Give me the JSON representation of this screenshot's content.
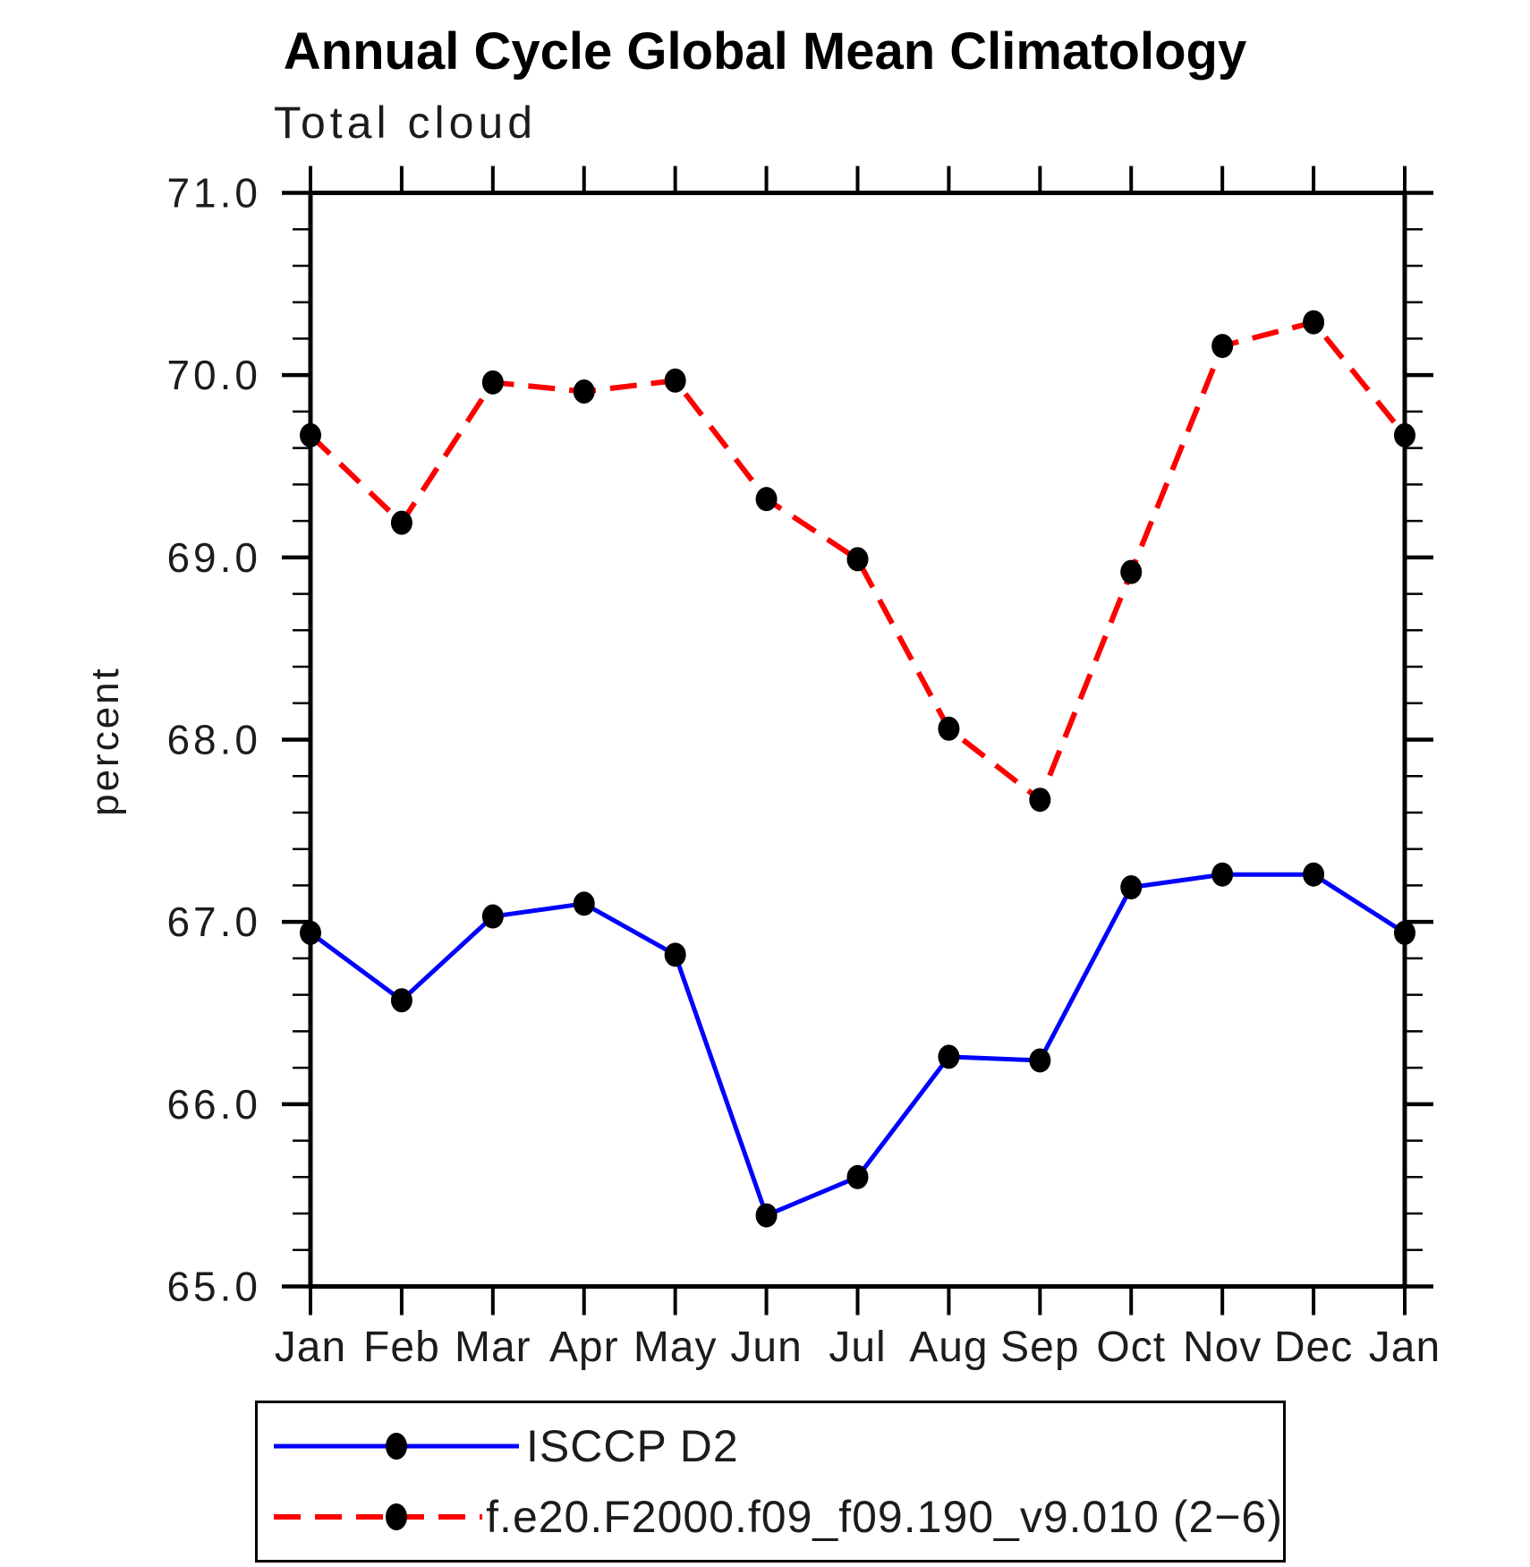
{
  "chart_data": {
    "type": "line",
    "title": "Annual Cycle Global Mean Climatology",
    "subtitle": "Total cloud",
    "ylabel": "percent",
    "xlabel": "",
    "categories": [
      "Jan",
      "Feb",
      "Mar",
      "Apr",
      "May",
      "Jun",
      "Jul",
      "Aug",
      "Sep",
      "Oct",
      "Nov",
      "Dec",
      "Jan"
    ],
    "ylim": [
      65.0,
      71.0
    ],
    "y_major_ticks": [
      71.0,
      70.0,
      69.0,
      68.0,
      67.0,
      66.0,
      65.0
    ],
    "y_tick_labels": [
      "71.0",
      "70.0",
      "69.0",
      "68.0",
      "67.0",
      "66.0",
      "65.0"
    ],
    "y_minor_step": 0.2,
    "grid": false,
    "axis_color": "#000000",
    "legend_position": "bottom-left-box",
    "series": [
      {
        "name": "ISCCP D2",
        "color": "#0000ff",
        "line_style": "solid",
        "line_width": 5,
        "marker": "filled-circle",
        "marker_color": "#000000",
        "values": [
          66.94,
          66.57,
          67.03,
          67.1,
          66.82,
          65.39,
          65.6,
          66.26,
          66.24,
          67.19,
          67.26,
          67.26,
          66.94
        ]
      },
      {
        "name": "f.e20.F2000.f09_f09.190_v9.010 (2−6)",
        "color": "#ff0000",
        "line_style": "dashed",
        "line_width": 6,
        "marker": "filled-circle",
        "marker_color": "#000000",
        "values": [
          69.67,
          69.19,
          69.96,
          69.91,
          69.97,
          69.32,
          68.99,
          68.06,
          67.67,
          68.92,
          70.16,
          70.29,
          69.67
        ]
      }
    ]
  }
}
